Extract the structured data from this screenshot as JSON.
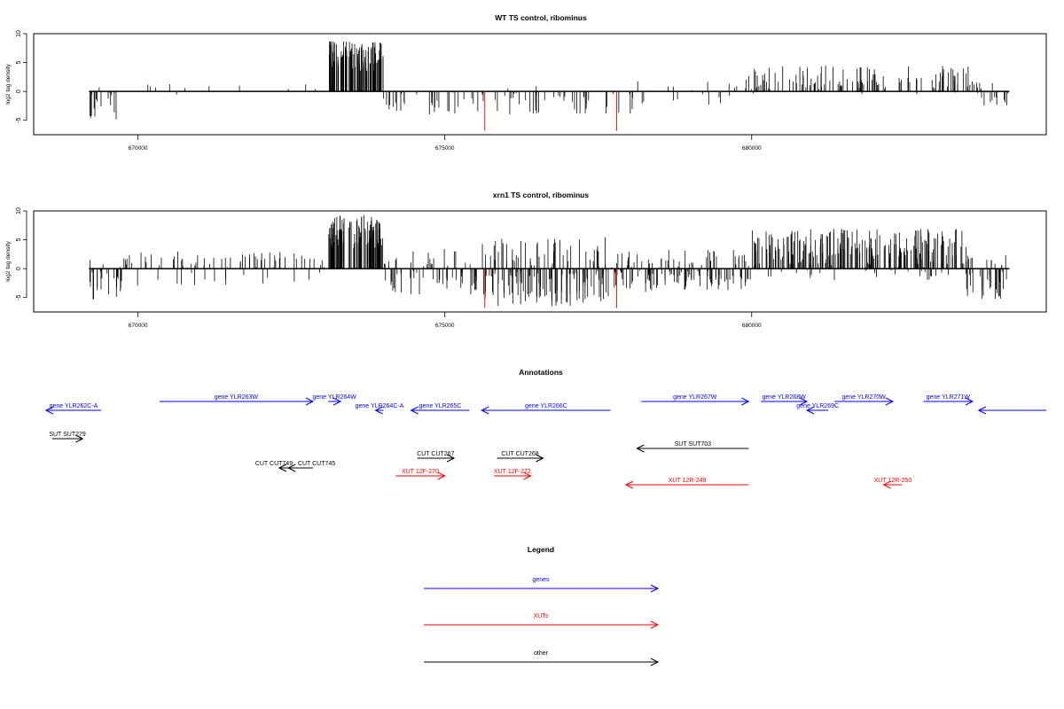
{
  "panels": [
    {
      "title": "WT TS control, ribominus",
      "ylabel": "log2 tag density",
      "ylim": [
        -7.5,
        10
      ],
      "yticks": [
        -5,
        0,
        5,
        10
      ],
      "xlim": [
        668300,
        684800
      ],
      "xticks": [
        670000,
        675000,
        680000
      ],
      "markers": [
        675650,
        677800
      ],
      "marker_color": "#ff0000",
      "bar_color": "#000000",
      "seed": 11,
      "segments": [
        {
          "start": 669200,
          "end": 669750,
          "lo": -5,
          "hi": 1.2,
          "dens": 0.5,
          "bias": -0.7
        },
        {
          "start": 669750,
          "end": 672500,
          "lo": -1,
          "hi": 1.7,
          "dens": 0.05,
          "bias": 0.7
        },
        {
          "start": 672500,
          "end": 673100,
          "lo": -0.5,
          "hi": 2.5,
          "dens": 0.08,
          "bias": 0.8
        },
        {
          "start": 673100,
          "end": 674000,
          "lo": 0,
          "hi": 8.7,
          "dens": 1.7,
          "bias": 1,
          "minabs": 3.5
        },
        {
          "start": 674000,
          "end": 678100,
          "lo": -4,
          "hi": 1.2,
          "dens": 0.28,
          "bias": -0.75
        },
        {
          "start": 678100,
          "end": 679900,
          "lo": -2.5,
          "hi": 1.8,
          "dens": 0.15,
          "bias": 0.1
        },
        {
          "start": 679900,
          "end": 683600,
          "lo": -0.5,
          "hi": 4.5,
          "dens": 0.5,
          "bias": 0.88
        },
        {
          "start": 683600,
          "end": 684200,
          "lo": -2.8,
          "hi": 1.5,
          "dens": 0.5,
          "bias": -0.55
        }
      ]
    },
    {
      "title": "xrn1 TS control, ribominus",
      "ylabel": "log2 tag density",
      "ylim": [
        -7.5,
        10
      ],
      "yticks": [
        -5,
        0,
        5,
        10
      ],
      "xlim": [
        668300,
        684800
      ],
      "xticks": [
        670000,
        675000,
        680000
      ],
      "markers": [
        675650,
        677800
      ],
      "marker_color": "#ff0000",
      "bar_color": "#000000",
      "seed": 29,
      "segments": [
        {
          "start": 669200,
          "end": 669750,
          "lo": -5.5,
          "hi": 2,
          "dens": 0.7,
          "bias": -0.65
        },
        {
          "start": 669750,
          "end": 673100,
          "lo": -3,
          "hi": 3,
          "dens": 0.35,
          "bias": 0.55
        },
        {
          "start": 673100,
          "end": 674000,
          "lo": 0,
          "hi": 9.3,
          "dens": 1.7,
          "bias": 1,
          "minabs": 3.5
        },
        {
          "start": 674000,
          "end": 675600,
          "lo": -4.5,
          "hi": 3.5,
          "dens": 0.6,
          "bias": -0.3
        },
        {
          "start": 675600,
          "end": 677700,
          "lo": -6.5,
          "hi": 5.5,
          "dens": 1.1,
          "bias": -0.35
        },
        {
          "start": 677700,
          "end": 680000,
          "lo": -4,
          "hi": 3.5,
          "dens": 0.85,
          "bias": -0.3
        },
        {
          "start": 680000,
          "end": 683500,
          "lo": -2,
          "hi": 7,
          "dens": 1.1,
          "bias": 0.8
        },
        {
          "start": 683500,
          "end": 684200,
          "lo": -5.5,
          "hi": 2.5,
          "dens": 0.8,
          "bias": -0.45
        }
      ]
    }
  ],
  "annotations": {
    "title": "Annotations",
    "items": [
      {
        "label": "gene YLR262C-A",
        "start": 669400,
        "end": 668500,
        "dir": "-",
        "row": 1,
        "color": "#0000ff"
      },
      {
        "label": "gene YLR263W",
        "start": 670350,
        "end": 672850,
        "dir": "+",
        "row": 0,
        "color": "#0000ff"
      },
      {
        "label": "gene YLR264W",
        "start": 673100,
        "end": 673300,
        "dir": "+",
        "row": 0,
        "color": "#0000ff"
      },
      {
        "label": "gene YLR264C-A",
        "start": 674000,
        "end": 673870,
        "dir": "-",
        "row": 1,
        "color": "#0000ff"
      },
      {
        "label": "gene YLR265C",
        "start": 675400,
        "end": 674450,
        "dir": "-",
        "row": 1,
        "color": "#0000ff"
      },
      {
        "label": "gene YLR266C",
        "start": 677700,
        "end": 675600,
        "dir": "-",
        "row": 1,
        "color": "#0000ff"
      },
      {
        "label": "gene YLR267W",
        "start": 678200,
        "end": 679950,
        "dir": "+",
        "row": 0,
        "color": "#0000ff"
      },
      {
        "label": "gene YLR268W",
        "start": 680150,
        "end": 680900,
        "dir": "+",
        "row": 0,
        "color": "#0000ff"
      },
      {
        "label": "gene YLR269C",
        "start": 681250,
        "end": 680900,
        "dir": "-",
        "row": 1,
        "color": "#0000ff"
      },
      {
        "label": "gene YLR270W",
        "start": 681350,
        "end": 682300,
        "dir": "+",
        "row": 0,
        "color": "#0000ff"
      },
      {
        "label": "gene YLR271W",
        "start": 682800,
        "end": 683600,
        "dir": "+",
        "row": 0,
        "color": "#0000ff"
      },
      {
        "label": "",
        "start": 684800,
        "end": 683700,
        "dir": "-",
        "row": 1,
        "color": "#0000ff"
      },
      {
        "label": "SUT SUT279",
        "start": 668600,
        "end": 669100,
        "dir": "+",
        "row": 3,
        "color": "#000000"
      },
      {
        "label": "SUT SUT703",
        "start": 679950,
        "end": 678130,
        "dir": "-",
        "row": 4,
        "color": "#000000"
      },
      {
        "label": "CUT CUT745",
        "start": 672850,
        "end": 672450,
        "dir": "-",
        "row": 6,
        "color": "#000000",
        "dx": 18
      },
      {
        "label": "CUT CUT749",
        "start": 672650,
        "end": 672300,
        "dir": "-",
        "row": 6,
        "color": "#000000",
        "dx": -18
      },
      {
        "label": "CUT CUT267",
        "start": 674550,
        "end": 675150,
        "dir": "+",
        "row": 5,
        "color": "#000000"
      },
      {
        "label": "CUT CUT268",
        "start": 675850,
        "end": 676600,
        "dir": "+",
        "row": 5,
        "color": "#000000"
      },
      {
        "label": "XUT 12F-270",
        "start": 674200,
        "end": 675000,
        "dir": "+",
        "row": 7,
        "color": "#ff0000"
      },
      {
        "label": "XUT 12F-272",
        "start": 675800,
        "end": 676400,
        "dir": "+",
        "row": 7,
        "color": "#ff0000"
      },
      {
        "label": "XUT 12R-249",
        "start": 679950,
        "end": 677950,
        "dir": "-",
        "row": 8,
        "color": "#ff0000"
      },
      {
        "label": "XUT 12R-250",
        "start": 682450,
        "end": 682150,
        "dir": "-",
        "row": 8,
        "color": "#ff0000"
      }
    ]
  },
  "legend": {
    "title": "Legend",
    "items": [
      {
        "label": "genes",
        "color": "#0000ff"
      },
      {
        "label": "XUTs",
        "color": "#ff0000"
      },
      {
        "label": "other",
        "color": "#000000"
      }
    ]
  }
}
